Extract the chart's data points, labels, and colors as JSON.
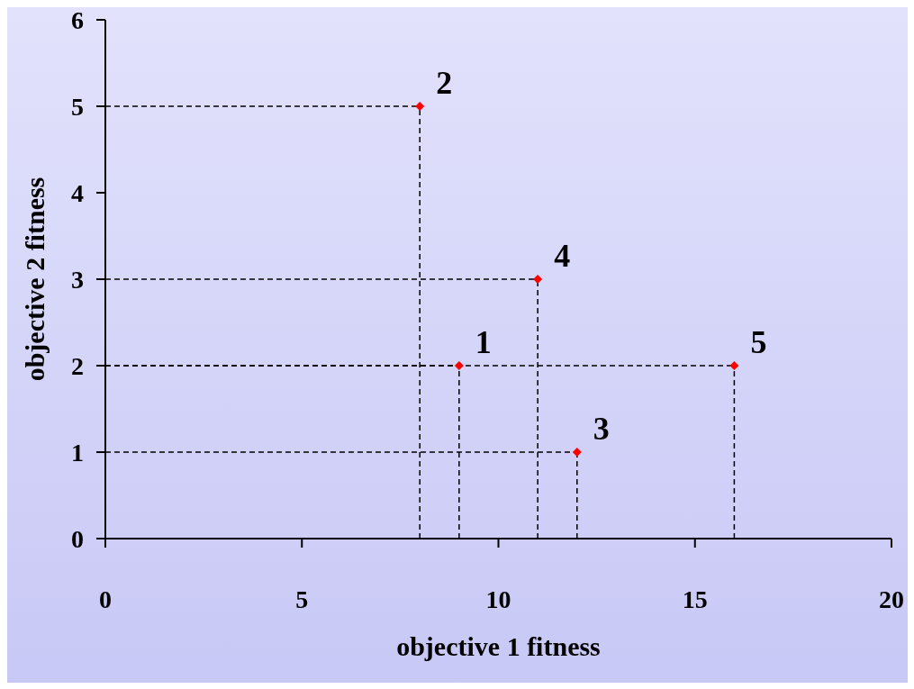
{
  "chart_data": {
    "type": "scatter",
    "xlabel": "objective 1 fitness",
    "ylabel": "objective 2 fitness",
    "x": [
      9,
      8,
      12,
      11,
      16
    ],
    "values": [
      2,
      5,
      1,
      3,
      2
    ],
    "color": "#ff0000",
    "marker": "diamond",
    "xlim": [
      0,
      20
    ],
    "xticks": [
      0,
      5,
      10,
      15,
      20
    ],
    "ylim": [
      0,
      6
    ],
    "yticks": [
      0,
      1,
      2,
      3,
      4,
      5,
      6
    ],
    "annotations": [
      {
        "text": "1",
        "x": 9,
        "y": 2
      },
      {
        "text": "2",
        "x": 8,
        "y": 5
      },
      {
        "text": "3",
        "x": 12,
        "y": 1
      },
      {
        "text": "4",
        "x": 11,
        "y": 3
      },
      {
        "text": "5",
        "x": 16,
        "y": 2
      }
    ]
  }
}
